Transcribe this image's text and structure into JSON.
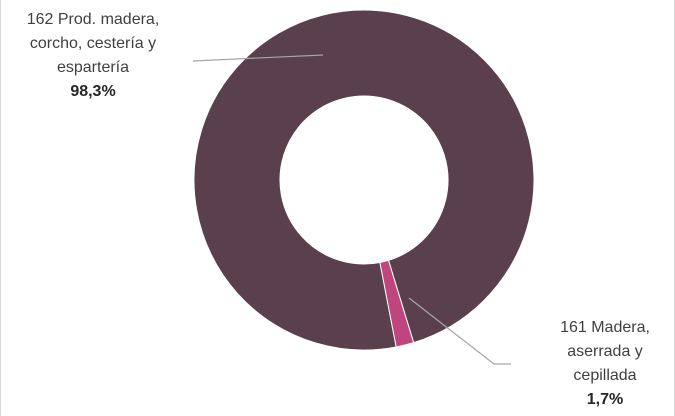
{
  "chart_data": {
    "type": "pie",
    "variant": "donut",
    "title": "",
    "slices": [
      {
        "category_lines": [
          "161 Madera,",
          "aserrada y",
          "cepillada"
        ],
        "value": 1.7,
        "label": "1,7%",
        "color": "#c0447e"
      },
      {
        "category_lines": [
          "162 Prod. madera,",
          "corcho, cestería y",
          "espartería"
        ],
        "value": 98.3,
        "label": "98,3%",
        "color": "#5a3f4c"
      }
    ],
    "legend": "none",
    "leader_line_color": "#a6a6a6"
  }
}
